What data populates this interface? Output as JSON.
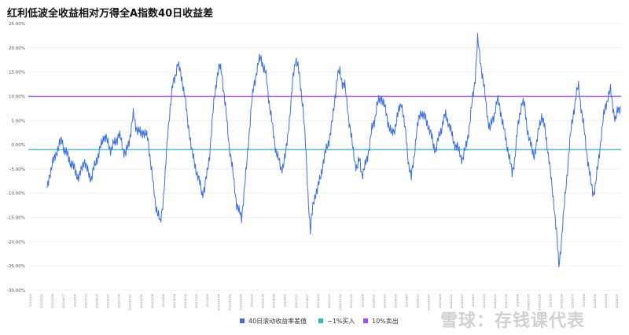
{
  "title": "红利低波全收益相对万得全A指数40日收益差",
  "watermark": "雪球：存钱课代表",
  "colors": {
    "series": "#3a6ee8",
    "buy": "#2ab8c8",
    "sell": "#9a4dff",
    "grid": "#e6e6e6"
  },
  "chart_data": {
    "type": "line",
    "title": "红利低波全收益相对万得全A指数40日收益差",
    "ylim": [
      -30,
      25
    ],
    "y_ticks": [
      -30,
      -25,
      -20,
      -15,
      -10,
      -5,
      0,
      5,
      10,
      15,
      20,
      25
    ],
    "y_tick_labels": [
      "-30.00%",
      "-25.00%",
      "-20.00%",
      "-15.00%",
      "-10.00%",
      "-5.00%",
      "0.00%",
      "5.00%",
      "10.00%",
      "15.00%",
      "20.00%",
      "25.00%"
    ],
    "x_tick_labels": [
      "2020/1/2",
      "2020/2/10",
      "2020/3/19",
      "2020/4/27",
      "2020/6/4",
      "2020/7/13",
      "2020/8/19",
      "2020/9/27",
      "2020/11/4",
      "2020/12/11",
      "2021/1/19",
      "2021/2/26",
      "2021/4/6",
      "2021/5/14",
      "2021/6/22",
      "2021/7/29",
      "2021/9/6",
      "2021/10/14",
      "2021/11/22",
      "2021/12/29",
      "2022/2/9",
      "2022/3/18",
      "2022/4/26",
      "2022/6/2",
      "2022/7/11",
      "2022/8/17",
      "2022/9/23",
      "2022/11/7",
      "2022/12/14",
      "2023/1/20",
      "2023/3/6",
      "2023/4/12",
      "2023/5/22",
      "2023/6/30",
      "2023/8/7",
      "2023/9/13",
      "2023/10/27",
      "2023/12/5",
      "2024/1/11",
      "2024/2/27",
      "2024/4/3",
      "2024/5/13",
      "2024/6/20",
      "2024/7/29",
      "2024/9/4",
      "2024/10/17",
      "2024/11/25",
      "2025/1/3",
      "2025/2/18",
      "2025/3/27",
      "2025/5/8",
      "2025/6/16",
      "2025/7/24",
      "2025/8/29"
    ],
    "series": [
      {
        "name": "40日滚动收益率差值",
        "color": "#3a6ee8",
        "values": [
          -9.5,
          -6,
          -4,
          -3,
          -1,
          0,
          1,
          -1,
          -2,
          -3,
          -4,
          -5,
          -6,
          -7,
          -5,
          -3,
          -5,
          -6,
          -7,
          -5,
          -3,
          -2,
          0,
          2,
          1,
          0,
          -1,
          0,
          1,
          2,
          1,
          -1,
          -2,
          0,
          3,
          6,
          4,
          3,
          2,
          3,
          2,
          1,
          -3,
          -8,
          -12,
          -14,
          -16.5,
          -12,
          -6,
          2,
          8,
          12,
          14,
          17,
          15,
          13,
          10,
          5,
          2,
          -2,
          -4,
          -6,
          -8,
          -10,
          -9,
          -6,
          -2,
          4,
          10,
          14,
          16,
          15,
          10,
          5,
          0,
          -4,
          -8,
          -12,
          -14,
          -15,
          -10,
          -5,
          2,
          8,
          12,
          15,
          17,
          18,
          16,
          14,
          10,
          6,
          2,
          -1,
          -3,
          -5,
          -4,
          -2,
          3,
          8,
          14,
          18,
          16,
          12,
          8,
          0,
          -10,
          -17.5,
          -13,
          -10,
          -9,
          -7,
          -4,
          -2,
          0,
          2,
          5,
          10,
          14,
          15,
          13,
          12,
          8,
          4,
          0,
          -3,
          -5,
          -3,
          -6,
          -5,
          -3,
          0,
          3,
          5,
          8,
          9,
          10,
          8,
          6,
          4,
          2,
          3,
          5,
          7,
          9,
          5,
          1,
          -4,
          -7,
          -3,
          2,
          5,
          7,
          6,
          5,
          4,
          2,
          0,
          -1,
          1,
          3,
          5,
          6,
          5,
          3,
          1,
          0,
          -1,
          -2,
          -3,
          -1,
          2,
          5,
          10,
          14,
          21.5,
          18,
          14,
          10,
          6,
          3,
          5,
          7,
          9,
          8,
          5,
          2,
          0,
          -3,
          -6,
          -3,
          2,
          6,
          9,
          8,
          4,
          1,
          -1,
          -2,
          0,
          4,
          6,
          4,
          1,
          -3,
          -8,
          -12,
          -18,
          -25,
          -20,
          -14,
          -8,
          -2,
          3,
          7,
          10,
          12,
          8,
          4,
          0,
          -4,
          -8,
          -10,
          -8,
          -4,
          1,
          5,
          8,
          10,
          11,
          8,
          5,
          7,
          8
        ]
      },
      {
        "name": "−1%买入",
        "color": "#2ab8c8",
        "value": -1
      },
      {
        "name": "10%卖出",
        "color": "#9a4dff",
        "value": 10
      }
    ],
    "grid": true,
    "legend": "bottom-center"
  }
}
